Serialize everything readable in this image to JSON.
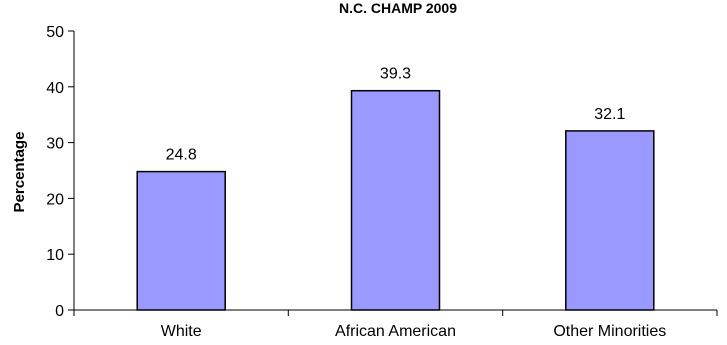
{
  "chart_data": {
    "type": "bar",
    "title": "N.C. CHAMP 2009",
    "xlabel": "",
    "ylabel": "Percentage",
    "categories": [
      "White",
      "African American",
      "Other Minorities"
    ],
    "values": [
      24.8,
      39.3,
      32.1
    ],
    "data_labels": [
      "24.8",
      "39.3",
      "32.1"
    ],
    "ylim": [
      0,
      50
    ],
    "yticks": [
      0,
      10,
      20,
      30,
      40,
      50
    ],
    "grid": false,
    "legend": "none",
    "colors": {
      "bar_fill": "#9999ff",
      "bar_stroke": "#000000",
      "axis": "#000000"
    }
  }
}
